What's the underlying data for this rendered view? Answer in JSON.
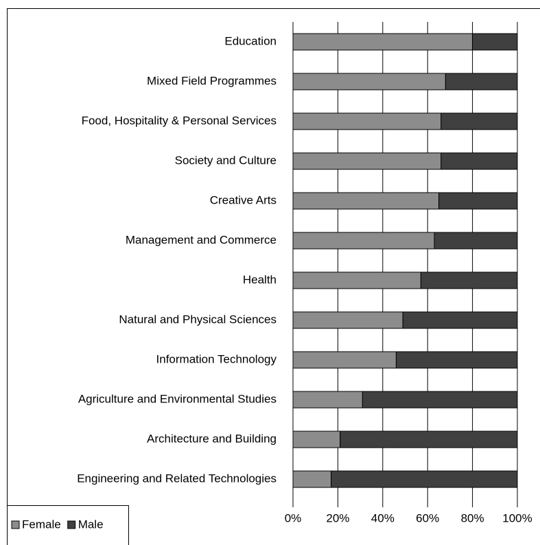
{
  "chart_data": {
    "type": "stacked_barh",
    "categories": [
      "Education",
      "Mixed Field Programmes",
      "Food, Hospitality & Personal Services",
      "Society and Culture",
      "Creative Arts",
      "Management and Commerce",
      "Health",
      "Natural and Physical Sciences",
      "Information Technology",
      "Agriculture and Environmental Studies",
      "Architecture and Building",
      "Engineering and Related Technologies"
    ],
    "series": [
      {
        "name": "Female",
        "color": "#8c8c8c",
        "values": [
          80,
          68,
          66,
          66,
          65,
          63,
          57,
          49,
          46,
          31,
          21,
          17
        ]
      },
      {
        "name": "Male",
        "color": "#404040",
        "values": [
          20,
          32,
          34,
          34,
          35,
          37,
          43,
          51,
          54,
          69,
          79,
          83
        ]
      }
    ],
    "xlim": [
      0,
      100
    ],
    "xticks": [
      {
        "value": 0,
        "label": "0%"
      },
      {
        "value": 20,
        "label": "20%"
      },
      {
        "value": 40,
        "label": "40%"
      },
      {
        "value": 60,
        "label": "60%"
      },
      {
        "value": 80,
        "label": "80%"
      },
      {
        "value": 100,
        "label": "100%"
      }
    ],
    "grid": true,
    "legend": "bottom-left"
  }
}
